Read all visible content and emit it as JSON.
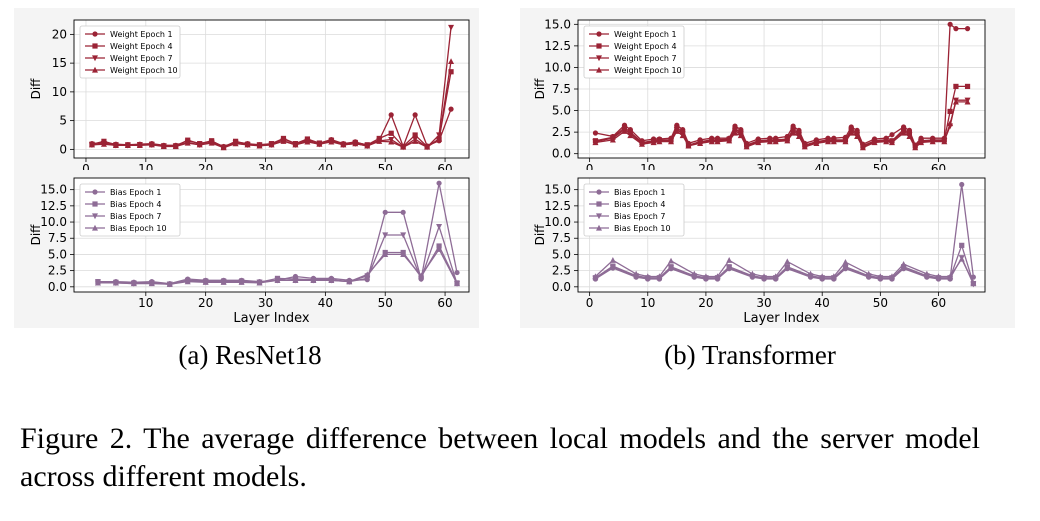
{
  "colors": {
    "weight": "#9b2335",
    "bias": "#8e6c96",
    "grid": "#dcdcdc",
    "panel_bg": "#f4f4f4"
  },
  "subcaption_a": "(a) ResNet18",
  "subcaption_b": "(b) Transformer",
  "figure_caption": "Figure 2.  The average difference between local models and the server model across different models.",
  "chart_data": [
    {
      "id": "resnet-weight",
      "type": "line",
      "title": "",
      "xlabel": "",
      "ylabel": "Diff",
      "xlim": [
        -2,
        64
      ],
      "ylim": [
        -1.5,
        22.5
      ],
      "xticks": [
        0,
        10,
        20,
        30,
        40,
        50,
        60
      ],
      "yticks": [
        0,
        5,
        10,
        15,
        20
      ],
      "yticklabels": [
        "0",
        "5",
        "10",
        "15",
        "20"
      ],
      "grid": true,
      "legend": "top-left",
      "color": "weight",
      "x": [
        1,
        3,
        5,
        7,
        9,
        11,
        13,
        15,
        17,
        19,
        21,
        23,
        25,
        27,
        29,
        31,
        33,
        35,
        37,
        39,
        41,
        43,
        45,
        47,
        49,
        51,
        53,
        55,
        57,
        59,
        61
      ],
      "series": [
        {
          "name": "Weight Epoch 1",
          "marker": "circle",
          "values": [
            1.0,
            1.2,
            0.9,
            0.8,
            0.9,
            1.0,
            0.7,
            0.7,
            1.5,
            1.0,
            1.4,
            0.5,
            1.3,
            1.0,
            0.8,
            0.9,
            1.8,
            1.0,
            1.6,
            1.1,
            1.7,
            1.0,
            1.3,
            0.7,
            1.6,
            6.0,
            0.5,
            6.0,
            0.6,
            1.5,
            7.0
          ]
        },
        {
          "name": "Weight Epoch 4",
          "marker": "square",
          "values": [
            0.9,
            1.4,
            0.8,
            0.8,
            0.8,
            0.9,
            0.6,
            0.6,
            1.6,
            1.0,
            1.5,
            0.4,
            1.4,
            0.9,
            0.8,
            1.0,
            1.9,
            1.0,
            1.8,
            1.1,
            1.6,
            0.9,
            1.2,
            0.8,
            1.9,
            2.8,
            0.5,
            2.5,
            0.5,
            1.8,
            13.5
          ]
        },
        {
          "name": "Weight Epoch 7",
          "marker": "triangle-down",
          "values": [
            0.8,
            1.0,
            0.7,
            0.7,
            0.8,
            0.8,
            0.6,
            0.6,
            1.2,
            0.8,
            1.2,
            0.4,
            1.1,
            0.8,
            0.7,
            0.8,
            1.5,
            0.8,
            1.4,
            0.9,
            1.4,
            0.8,
            1.0,
            0.6,
            1.5,
            1.7,
            0.4,
            1.8,
            0.4,
            2.5,
            21.2
          ]
        },
        {
          "name": "Weight Epoch 10",
          "marker": "triangle-up",
          "values": [
            0.8,
            0.9,
            0.7,
            0.7,
            0.7,
            0.8,
            0.5,
            0.5,
            1.1,
            0.8,
            1.1,
            0.3,
            1.0,
            0.8,
            0.6,
            0.8,
            1.4,
            0.8,
            1.3,
            0.9,
            1.3,
            0.8,
            1.0,
            0.6,
            1.4,
            1.3,
            0.4,
            1.4,
            0.4,
            1.8,
            15.3
          ]
        }
      ]
    },
    {
      "id": "resnet-bias",
      "type": "line",
      "title": "",
      "xlabel": "Layer Index",
      "ylabel": "Diff",
      "xlim": [
        -2,
        64
      ],
      "ylim": [
        -0.8,
        16.8
      ],
      "xticks": [
        10,
        20,
        30,
        40,
        50,
        60
      ],
      "yticks": [
        0,
        2.5,
        5,
        7.5,
        10,
        12.5,
        15
      ],
      "yticklabels": [
        "0.0",
        "2.5",
        "5.0",
        "7.5",
        "10.0",
        "12.5",
        "15.0"
      ],
      "grid": true,
      "legend": "top-left",
      "color": "bias",
      "x": [
        2,
        5,
        8,
        11,
        14,
        17,
        20,
        23,
        26,
        29,
        32,
        35,
        38,
        41,
        44,
        47,
        50,
        53,
        56,
        59,
        62
      ],
      "series": [
        {
          "name": "Bias Epoch 1",
          "marker": "circle",
          "values": [
            0.8,
            0.8,
            0.7,
            0.8,
            0.5,
            1.2,
            1.0,
            1.0,
            1.0,
            0.8,
            1.0,
            1.6,
            1.3,
            1.3,
            1.0,
            1.1,
            11.5,
            11.5,
            1.2,
            16.0,
            2.2
          ]
        },
        {
          "name": "Bias Epoch 4",
          "marker": "square",
          "values": [
            0.8,
            0.7,
            0.6,
            0.6,
            0.4,
            1.0,
            0.9,
            0.9,
            0.9,
            0.7,
            1.3,
            1.2,
            1.1,
            1.1,
            0.8,
            1.7,
            5.3,
            5.3,
            1.5,
            6.3,
            0.6
          ]
        },
        {
          "name": "Bias Epoch 7",
          "marker": "triangle-down",
          "values": [
            0.7,
            0.6,
            0.5,
            0.6,
            0.4,
            0.9,
            0.8,
            0.8,
            0.8,
            0.7,
            1.0,
            1.0,
            1.0,
            1.0,
            0.8,
            1.3,
            8.0,
            8.0,
            1.2,
            9.3,
            0.5
          ]
        },
        {
          "name": "Bias Epoch 10",
          "marker": "triangle-up",
          "values": [
            0.6,
            0.6,
            0.5,
            0.5,
            0.4,
            0.8,
            0.7,
            0.7,
            0.7,
            0.6,
            1.0,
            1.0,
            1.0,
            1.0,
            0.8,
            1.9,
            5.0,
            5.0,
            1.7,
            5.8,
            0.5
          ]
        }
      ]
    },
    {
      "id": "transformer-weight",
      "type": "line",
      "title": "",
      "xlabel": "",
      "ylabel": "Diff",
      "xlim": [
        -2,
        68
      ],
      "ylim": [
        -0.5,
        15.5
      ],
      "xticks": [
        0,
        10,
        20,
        30,
        40,
        50,
        60
      ],
      "yticks": [
        0,
        2.5,
        5,
        7.5,
        10,
        12.5,
        15
      ],
      "yticklabels": [
        "0.0",
        "2.5",
        "5.0",
        "7.5",
        "10.0",
        "12.5",
        "15.0"
      ],
      "grid": true,
      "legend": "top-left",
      "color": "weight",
      "x": [
        1,
        4,
        6,
        7,
        9,
        11,
        12,
        14,
        15,
        16,
        17,
        19,
        21,
        22,
        24,
        25,
        26,
        27,
        29,
        31,
        32,
        34,
        35,
        36,
        37,
        39,
        41,
        42,
        44,
        45,
        46,
        47,
        49,
        51,
        52,
        54,
        55,
        56,
        57,
        59,
        61,
        62,
        63,
        65
      ],
      "series": [
        {
          "name": "Weight Epoch 1",
          "marker": "circle",
          "values": [
            2.4,
            2.0,
            3.3,
            2.8,
            1.5,
            1.7,
            1.7,
            1.8,
            3.3,
            2.8,
            1.2,
            1.6,
            1.8,
            1.8,
            1.8,
            3.2,
            2.8,
            1.2,
            1.7,
            1.8,
            1.8,
            2.0,
            3.2,
            2.7,
            1.2,
            1.6,
            1.8,
            1.8,
            1.9,
            3.1,
            2.7,
            1.1,
            1.7,
            1.8,
            2.2,
            3.1,
            2.7,
            1.0,
            1.8,
            1.8,
            1.8,
            15.0,
            14.5,
            14.5
          ]
        },
        {
          "name": "Weight Epoch 4",
          "marker": "square",
          "values": [
            1.5,
            1.9,
            3.0,
            2.5,
            1.3,
            1.5,
            1.6,
            1.6,
            3.0,
            2.5,
            1.0,
            1.4,
            1.6,
            1.6,
            1.7,
            2.8,
            2.5,
            1.0,
            1.5,
            1.6,
            1.6,
            1.7,
            2.8,
            2.4,
            1.0,
            1.4,
            1.6,
            1.6,
            1.6,
            2.8,
            2.4,
            0.9,
            1.5,
            1.6,
            1.5,
            2.8,
            2.4,
            0.9,
            1.5,
            1.6,
            1.6,
            4.9,
            7.8,
            7.8
          ]
        },
        {
          "name": "Weight Epoch 7",
          "marker": "triangle-down",
          "values": [
            1.4,
            1.8,
            2.8,
            2.3,
            1.2,
            1.4,
            1.5,
            1.5,
            2.8,
            2.3,
            1.0,
            1.3,
            1.5,
            1.5,
            1.6,
            2.6,
            2.3,
            0.9,
            1.4,
            1.5,
            1.5,
            1.6,
            2.6,
            2.2,
            0.9,
            1.3,
            1.5,
            1.5,
            1.5,
            2.6,
            2.2,
            0.8,
            1.4,
            1.5,
            1.4,
            2.6,
            2.2,
            0.8,
            1.4,
            1.5,
            1.5,
            3.2,
            6.2,
            6.2
          ]
        },
        {
          "name": "Weight Epoch 10",
          "marker": "triangle-up",
          "values": [
            1.3,
            1.6,
            2.6,
            2.1,
            1.1,
            1.3,
            1.4,
            1.4,
            2.6,
            2.1,
            0.9,
            1.2,
            1.4,
            1.4,
            1.5,
            2.4,
            2.1,
            0.8,
            1.3,
            1.4,
            1.4,
            1.5,
            2.4,
            2.0,
            0.8,
            1.2,
            1.4,
            1.4,
            1.4,
            2.4,
            2.0,
            0.7,
            1.3,
            1.4,
            1.3,
            2.4,
            2.0,
            0.7,
            1.3,
            1.4,
            1.4,
            3.5,
            6.0,
            6.0
          ]
        }
      ]
    },
    {
      "id": "transformer-bias",
      "type": "line",
      "title": "",
      "xlabel": "Layer Index",
      "ylabel": "Diff",
      "xlim": [
        -2,
        68
      ],
      "ylim": [
        -0.8,
        16.8
      ],
      "xticks": [
        0,
        10,
        20,
        30,
        40,
        50,
        60
      ],
      "yticks": [
        0,
        2.5,
        5,
        7.5,
        10,
        12.5,
        15
      ],
      "yticklabels": [
        "0.0",
        "2.5",
        "5.0",
        "7.5",
        "10.0",
        "12.5",
        "15.0"
      ],
      "grid": true,
      "legend": "top-left",
      "color": "bias",
      "x": [
        1,
        4,
        8,
        10,
        12,
        14,
        18,
        20,
        22,
        24,
        28,
        30,
        32,
        34,
        38,
        40,
        42,
        44,
        48,
        50,
        52,
        54,
        58,
        60,
        62,
        64,
        66
      ],
      "series": [
        {
          "name": "Bias Epoch 1",
          "marker": "circle",
          "values": [
            1.2,
            2.9,
            1.5,
            1.2,
            1.2,
            2.8,
            1.5,
            1.2,
            1.2,
            2.8,
            1.5,
            1.2,
            1.2,
            2.8,
            1.5,
            1.2,
            1.2,
            2.8,
            1.5,
            1.2,
            1.2,
            2.8,
            1.5,
            1.2,
            1.2,
            15.8,
            1.5
          ]
        },
        {
          "name": "Bias Epoch 4",
          "marker": "square",
          "values": [
            1.4,
            3.2,
            1.7,
            1.4,
            1.4,
            3.1,
            1.7,
            1.4,
            1.4,
            3.1,
            1.7,
            1.4,
            1.4,
            3.1,
            1.7,
            1.4,
            1.4,
            3.1,
            1.7,
            1.4,
            1.4,
            3.1,
            1.7,
            1.4,
            1.4,
            6.4,
            0.5
          ]
        },
        {
          "name": "Bias Epoch 7",
          "marker": "triangle-down",
          "values": [
            1.3,
            3.0,
            1.6,
            1.3,
            1.3,
            2.9,
            1.6,
            1.3,
            1.3,
            2.9,
            1.6,
            1.3,
            1.3,
            2.9,
            1.6,
            1.3,
            1.3,
            2.9,
            1.6,
            1.3,
            1.3,
            2.9,
            1.6,
            1.3,
            1.3,
            4.5,
            0.4
          ]
        },
        {
          "name": "Bias Epoch 10",
          "marker": "triangle-up",
          "values": [
            1.6,
            4.1,
            2.0,
            1.6,
            1.6,
            4.0,
            2.0,
            1.6,
            1.6,
            4.1,
            2.0,
            1.6,
            1.6,
            3.9,
            2.0,
            1.6,
            1.6,
            3.8,
            2.0,
            1.6,
            1.6,
            3.5,
            2.0,
            1.6,
            1.6,
            4.3,
            0.6
          ]
        }
      ]
    }
  ]
}
